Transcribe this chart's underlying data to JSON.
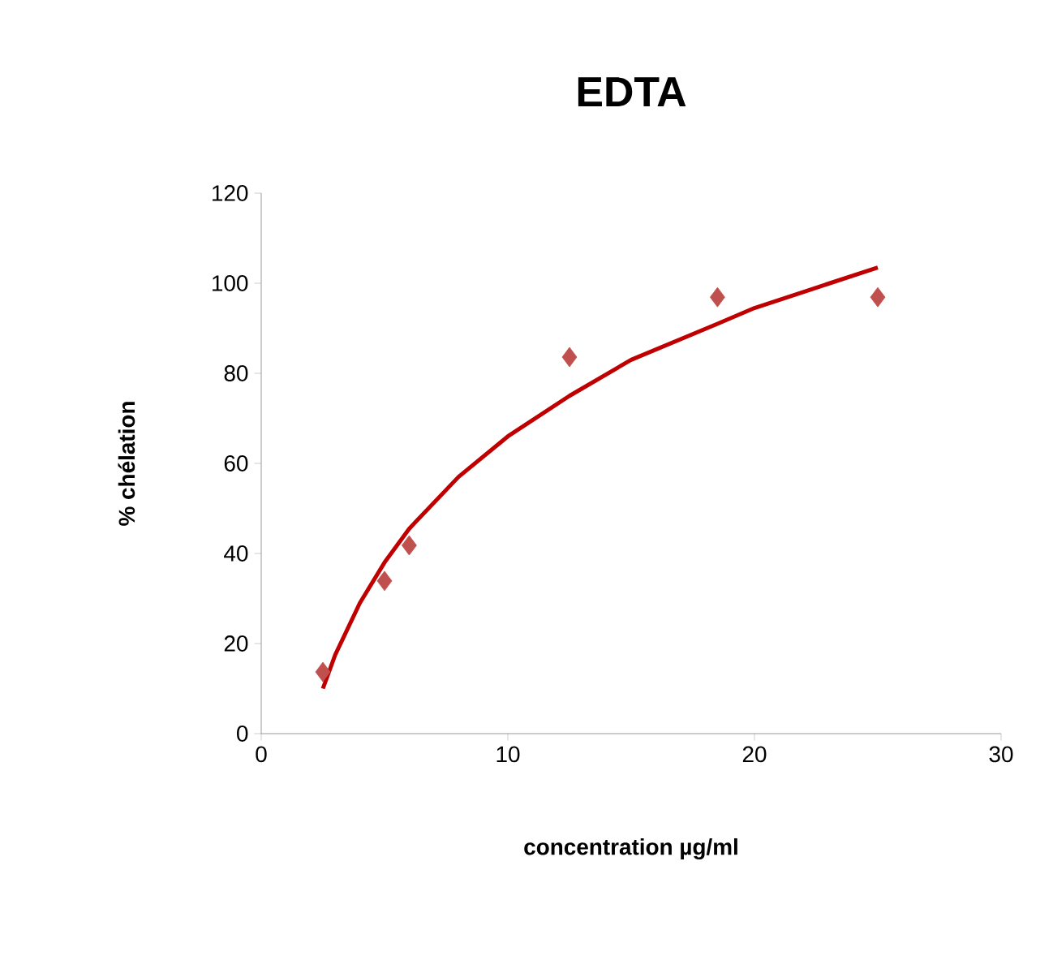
{
  "chart_data": {
    "type": "scatter",
    "title": "EDTA",
    "xlabel": "concentration µg/ml",
    "ylabel": "% chélation",
    "xlim": [
      0,
      30
    ],
    "xticks": [
      0,
      10,
      20,
      30
    ],
    "ylim": [
      0,
      120
    ],
    "yticks": [
      0,
      20,
      40,
      60,
      80,
      100,
      120
    ],
    "grid": false,
    "series": [
      {
        "marker": "diamond",
        "color": "#c0504d",
        "x": [
          2.5,
          5,
          6,
          12.5,
          18.5,
          25
        ],
        "values": [
          13.7,
          33.9,
          41.8,
          83.6,
          96.9,
          96.9
        ]
      },
      {
        "type": "line",
        "marker": "none",
        "line_style": "solid",
        "color": "#c00000",
        "x": [
          2.5,
          3,
          4,
          5,
          6,
          8,
          10,
          12.5,
          15,
          18.5,
          20,
          22.5,
          25
        ],
        "values": [
          10,
          17.5,
          29,
          38,
          45.5,
          57,
          66,
          75,
          83,
          91,
          94.5,
          99,
          103.5
        ]
      }
    ]
  }
}
